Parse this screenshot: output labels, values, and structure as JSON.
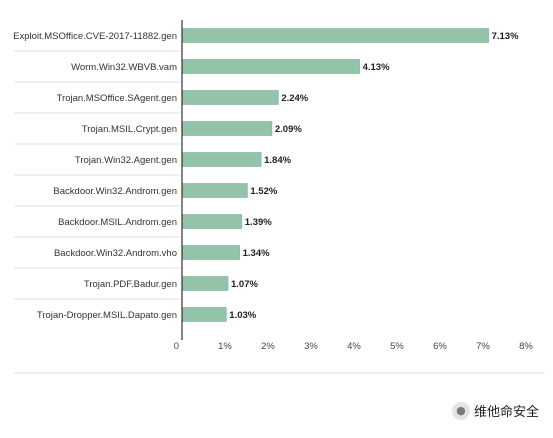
{
  "chart_data": {
    "type": "bar",
    "orientation": "horizontal",
    "categories": [
      "Exploit.MSOffice.CVE-2017-11882.gen",
      "Worm.Win32.WBVB.vam",
      "Trojan.MSOffice.SAgent.gen",
      "Trojan.MSIL.Crypt.gen",
      "Trojan.Win32.Agent.gen",
      "Backdoor.Win32.Androm.gen",
      "Backdoor.MSIL.Androm.gen",
      "Backdoor.Win32.Androm.vho",
      "Trojan.PDF.Badur.gen",
      "Trojan-Dropper.MSIL.Dapato.gen"
    ],
    "values": [
      7.13,
      4.13,
      2.24,
      2.09,
      1.84,
      1.52,
      1.39,
      1.34,
      1.07,
      1.03
    ],
    "data_labels": [
      "7.13%",
      "4.13%",
      "2.24%",
      "2.09%",
      "1.84%",
      "1.52%",
      "1.39%",
      "1.34%",
      "1.07%",
      "1.03%"
    ],
    "x_ticks": [
      {
        "value": 0,
        "label": "0"
      },
      {
        "value": 1,
        "label": "1%"
      },
      {
        "value": 2,
        "label": "2%"
      },
      {
        "value": 3,
        "label": "3%"
      },
      {
        "value": 4,
        "label": "4%"
      },
      {
        "value": 5,
        "label": "5%"
      },
      {
        "value": 6,
        "label": "6%"
      },
      {
        "value": 7,
        "label": "7%"
      },
      {
        "value": 8,
        "label": "8%"
      }
    ],
    "xlim": [
      0,
      8
    ],
    "grid": false,
    "legend": "none",
    "colors": {
      "bar": "#93c4a9",
      "bar_stroke": "#7fb197",
      "axis": "#333333",
      "separator": "#e2e2e2"
    }
  },
  "watermark": {
    "icon": "wechat-icon",
    "text": "维他命安全"
  }
}
